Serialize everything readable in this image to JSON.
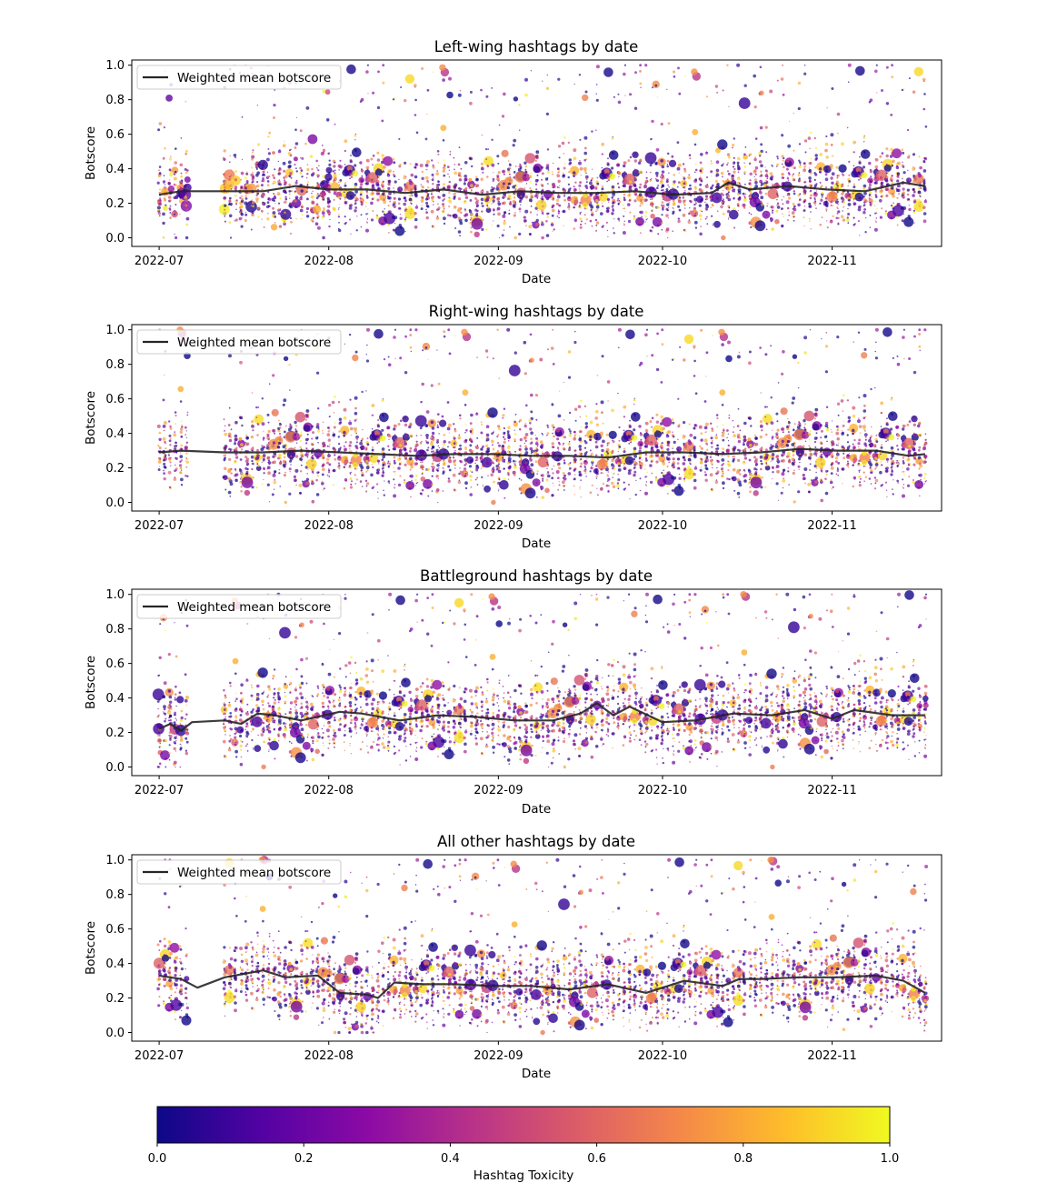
{
  "chart_data": [
    {
      "type": "scatter",
      "title": "Left-wing hashtags by date",
      "xlabel": "Date",
      "ylabel": "Botscore",
      "x_range": [
        "2022-06-26",
        "2022-11-21"
      ],
      "xticks": [
        "2022-07",
        "2022-08",
        "2022-09",
        "2022-10",
        "2022-11"
      ],
      "ylim": [
        -0.05,
        1.03
      ],
      "yticks": [
        "0.0",
        "0.2",
        "0.4",
        "0.6",
        "0.8",
        "1.0"
      ],
      "legend": {
        "label": "Weighted mean botscore",
        "position": "upper-left"
      },
      "grid": false,
      "scatter_encoding": {
        "color": "Hashtag Toxicity",
        "size": "volume"
      },
      "series": [
        {
          "name": "Weighted mean botscore",
          "x": [
            "2022-07-01",
            "2022-07-05",
            "2022-07-13",
            "2022-07-20",
            "2022-07-26",
            "2022-08-01",
            "2022-08-08",
            "2022-08-15",
            "2022-08-22",
            "2022-08-29",
            "2022-09-05",
            "2022-09-12",
            "2022-09-19",
            "2022-09-26",
            "2022-10-03",
            "2022-10-10",
            "2022-10-13",
            "2022-10-17",
            "2022-10-24",
            "2022-10-31",
            "2022-11-07",
            "2022-11-14",
            "2022-11-18"
          ],
          "y": [
            0.25,
            0.27,
            0.27,
            0.27,
            0.3,
            0.28,
            0.28,
            0.26,
            0.28,
            0.25,
            0.27,
            0.26,
            0.26,
            0.27,
            0.25,
            0.26,
            0.32,
            0.28,
            0.3,
            0.28,
            0.27,
            0.32,
            0.3
          ]
        }
      ]
    },
    {
      "type": "scatter",
      "title": "Right-wing hashtags by date",
      "xlabel": "Date",
      "ylabel": "Botscore",
      "x_range": [
        "2022-06-26",
        "2022-11-21"
      ],
      "xticks": [
        "2022-07",
        "2022-08",
        "2022-09",
        "2022-10",
        "2022-11"
      ],
      "ylim": [
        -0.05,
        1.03
      ],
      "yticks": [
        "0.0",
        "0.2",
        "0.4",
        "0.6",
        "0.8",
        "1.0"
      ],
      "legend": {
        "label": "Weighted mean botscore",
        "position": "upper-left"
      },
      "grid": false,
      "scatter_encoding": {
        "color": "Hashtag Toxicity",
        "size": "volume"
      },
      "series": [
        {
          "name": "Weighted mean botscore",
          "x": [
            "2022-07-01",
            "2022-07-05",
            "2022-07-13",
            "2022-07-20",
            "2022-07-27",
            "2022-08-03",
            "2022-08-10",
            "2022-08-17",
            "2022-08-24",
            "2022-08-31",
            "2022-09-07",
            "2022-09-14",
            "2022-09-21",
            "2022-09-28",
            "2022-10-05",
            "2022-10-12",
            "2022-10-19",
            "2022-10-26",
            "2022-11-02",
            "2022-11-09",
            "2022-11-15",
            "2022-11-18"
          ],
          "y": [
            0.29,
            0.3,
            0.29,
            0.29,
            0.3,
            0.29,
            0.28,
            0.27,
            0.28,
            0.28,
            0.27,
            0.27,
            0.26,
            0.29,
            0.29,
            0.28,
            0.29,
            0.31,
            0.3,
            0.3,
            0.27,
            0.28
          ]
        }
      ]
    },
    {
      "type": "scatter",
      "title": "Battleground hashtags by date",
      "xlabel": "Date",
      "ylabel": "Botscore",
      "x_range": [
        "2022-06-26",
        "2022-11-21"
      ],
      "xticks": [
        "2022-07",
        "2022-08",
        "2022-09",
        "2022-10",
        "2022-11"
      ],
      "ylim": [
        -0.05,
        1.03
      ],
      "yticks": [
        "0.0",
        "0.2",
        "0.4",
        "0.6",
        "0.8",
        "1.0"
      ],
      "legend": {
        "label": "Weighted mean botscore",
        "position": "upper-left"
      },
      "grid": false,
      "scatter_encoding": {
        "color": "Hashtag Toxicity",
        "size": "volume"
      },
      "series": [
        {
          "name": "Weighted mean botscore",
          "x": [
            "2022-07-01",
            "2022-07-03",
            "2022-07-05",
            "2022-07-07",
            "2022-07-13",
            "2022-07-16",
            "2022-07-19",
            "2022-07-22",
            "2022-07-27",
            "2022-08-03",
            "2022-08-07",
            "2022-08-14",
            "2022-08-21",
            "2022-08-28",
            "2022-09-04",
            "2022-09-11",
            "2022-09-16",
            "2022-09-19",
            "2022-09-22",
            "2022-09-25",
            "2022-10-01",
            "2022-10-07",
            "2022-10-14",
            "2022-10-21",
            "2022-10-27",
            "2022-11-01",
            "2022-11-05",
            "2022-11-12",
            "2022-11-18"
          ],
          "y": [
            0.22,
            0.25,
            0.21,
            0.26,
            0.27,
            0.25,
            0.31,
            0.3,
            0.27,
            0.32,
            0.31,
            0.27,
            0.3,
            0.29,
            0.27,
            0.27,
            0.31,
            0.37,
            0.3,
            0.35,
            0.26,
            0.27,
            0.31,
            0.3,
            0.33,
            0.28,
            0.33,
            0.3,
            0.3
          ]
        }
      ]
    },
    {
      "type": "scatter",
      "title": "All other hashtags by date",
      "xlabel": "Date",
      "ylabel": "Botscore",
      "x_range": [
        "2022-06-26",
        "2022-11-21"
      ],
      "xticks": [
        "2022-07",
        "2022-08",
        "2022-09",
        "2022-10",
        "2022-11"
      ],
      "ylim": [
        -0.05,
        1.03
      ],
      "yticks": [
        "0.0",
        "0.2",
        "0.4",
        "0.6",
        "0.8",
        "1.0"
      ],
      "legend": {
        "label": "Weighted mean botscore",
        "position": "upper-left"
      },
      "grid": false,
      "scatter_encoding": {
        "color": "Hashtag Toxicity",
        "size": "volume"
      },
      "series": [
        {
          "name": "Weighted mean botscore",
          "x": [
            "2022-07-01",
            "2022-07-05",
            "2022-07-08",
            "2022-07-13",
            "2022-07-20",
            "2022-07-24",
            "2022-07-30",
            "2022-08-03",
            "2022-08-08",
            "2022-08-10",
            "2022-08-13",
            "2022-08-18",
            "2022-08-24",
            "2022-08-31",
            "2022-09-07",
            "2022-09-14",
            "2022-09-21",
            "2022-09-28",
            "2022-10-05",
            "2022-10-12",
            "2022-10-15",
            "2022-10-19",
            "2022-10-26",
            "2022-11-02",
            "2022-11-09",
            "2022-11-14",
            "2022-11-18"
          ],
          "y": [
            0.33,
            0.31,
            0.26,
            0.32,
            0.36,
            0.32,
            0.33,
            0.23,
            0.22,
            0.2,
            0.29,
            0.28,
            0.28,
            0.27,
            0.27,
            0.25,
            0.28,
            0.23,
            0.3,
            0.27,
            0.31,
            0.31,
            0.32,
            0.32,
            0.33,
            0.3,
            0.23
          ]
        }
      ]
    }
  ],
  "colorbar": {
    "label": "Hashtag Toxicity",
    "ticks": [
      "0.0",
      "0.2",
      "0.4",
      "0.6",
      "0.8",
      "1.0"
    ],
    "colormap": "plasma",
    "stops": [
      "#0d0887",
      "#5302a3",
      "#8b0aa5",
      "#b83289",
      "#db5c68",
      "#f48849",
      "#febd2a",
      "#f0f921"
    ]
  }
}
